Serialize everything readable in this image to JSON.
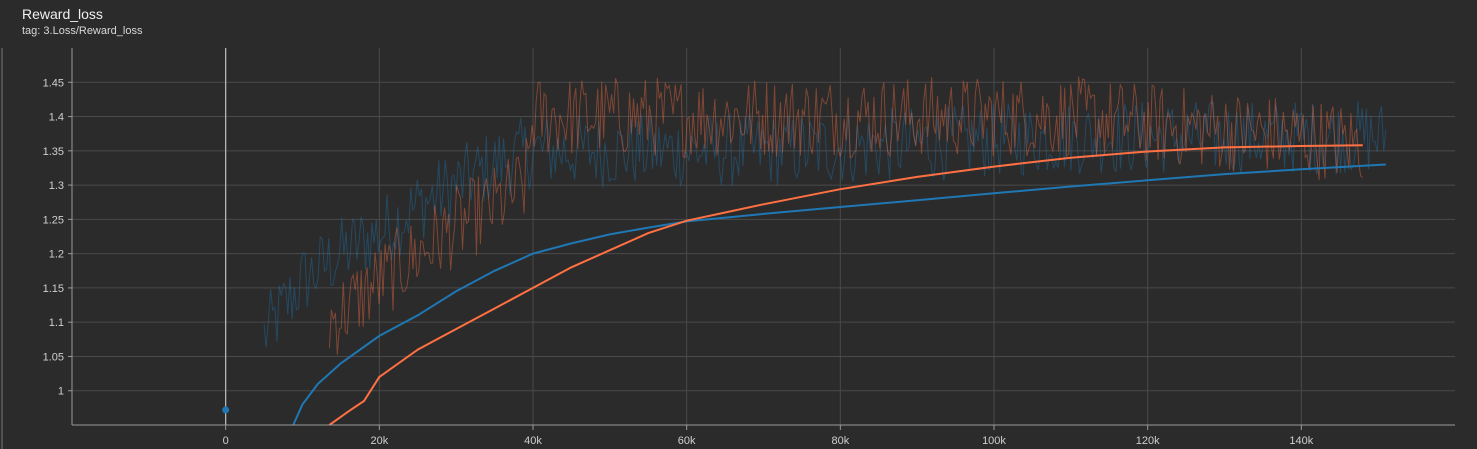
{
  "card": {
    "title": "Reward_loss",
    "tag": "tag: 3.Loss/Reward_loss"
  },
  "colors": {
    "background": "#2b2b2b",
    "grid": "#4a4a4a",
    "axis": "#9a9a9a",
    "series_blue": "#1f77b4",
    "series_orange": "#ff7043"
  },
  "chart_data": {
    "type": "line",
    "title": "Reward_loss",
    "xlabel": "",
    "ylabel": "",
    "xlim": [
      -20000,
      160000
    ],
    "ylim": [
      0.95,
      1.5
    ],
    "grid": true,
    "x_ticks": [
      0,
      20000,
      40000,
      60000,
      80000,
      100000,
      120000,
      140000
    ],
    "x_tick_labels": [
      "0",
      "20k",
      "40k",
      "60k",
      "80k",
      "100k",
      "120k",
      "140k"
    ],
    "y_ticks": [
      1,
      1.05,
      1.1,
      1.15,
      1.2,
      1.25,
      1.3,
      1.35,
      1.4,
      1.45
    ],
    "y_tick_labels": [
      "1",
      "1.05",
      "1.1",
      "1.15",
      "1.2",
      "1.25",
      "1.3",
      "1.35",
      "1.4",
      "1.45"
    ],
    "series": [
      {
        "color": "#1f77b4",
        "smoothed": {
          "x": [
            8000,
            10000,
            12000,
            15000,
            20000,
            25000,
            30000,
            35000,
            40000,
            45000,
            50000,
            55000,
            60000,
            70000,
            80000,
            90000,
            100000,
            110000,
            120000,
            130000,
            140000,
            151000
          ],
          "y": [
            0.93,
            0.98,
            1.01,
            1.04,
            1.08,
            1.11,
            1.145,
            1.175,
            1.2,
            1.215,
            1.228,
            1.238,
            1.247,
            1.258,
            1.268,
            1.278,
            1.288,
            1.298,
            1.307,
            1.316,
            1.323,
            1.33
          ]
        },
        "raw_trend": {
          "x": [
            5000,
            10000,
            15000,
            20000,
            25000,
            30000,
            35000,
            40000,
            50000,
            60000,
            70000,
            80000,
            90000,
            100000,
            110000,
            120000,
            130000,
            140000,
            151000
          ],
          "y": [
            1.08,
            1.16,
            1.2,
            1.23,
            1.27,
            1.3,
            1.33,
            1.35,
            1.35,
            1.35,
            1.35,
            1.355,
            1.36,
            1.365,
            1.37,
            1.37,
            1.37,
            1.37,
            1.37
          ]
        }
      },
      {
        "color": "#ff7043",
        "smoothed": {
          "x": [
            13500,
            16000,
            18000,
            20000,
            25000,
            30000,
            35000,
            40000,
            45000,
            50000,
            55000,
            60000,
            65000,
            70000,
            80000,
            90000,
            100000,
            110000,
            120000,
            130000,
            140000,
            148000
          ],
          "y": [
            0.95,
            0.97,
            0.985,
            1.02,
            1.06,
            1.09,
            1.12,
            1.15,
            1.18,
            1.205,
            1.23,
            1.248,
            1.26,
            1.272,
            1.294,
            1.312,
            1.327,
            1.34,
            1.349,
            1.355,
            1.357,
            1.358
          ]
        },
        "raw_trend": {
          "x": [
            13500,
            20000,
            25000,
            30000,
            35000,
            39000,
            40000,
            50000,
            60000,
            70000,
            80000,
            90000,
            100000,
            110000,
            120000,
            130000,
            140000,
            148000
          ],
          "y": [
            1.1,
            1.16,
            1.2,
            1.24,
            1.27,
            1.3,
            1.4,
            1.4,
            1.4,
            1.4,
            1.4,
            1.4,
            1.4,
            1.4,
            1.39,
            1.38,
            1.37,
            1.36
          ]
        }
      }
    ],
    "points": [
      {
        "x": 0,
        "y": 0.972,
        "color": "#1f77b4"
      }
    ]
  }
}
